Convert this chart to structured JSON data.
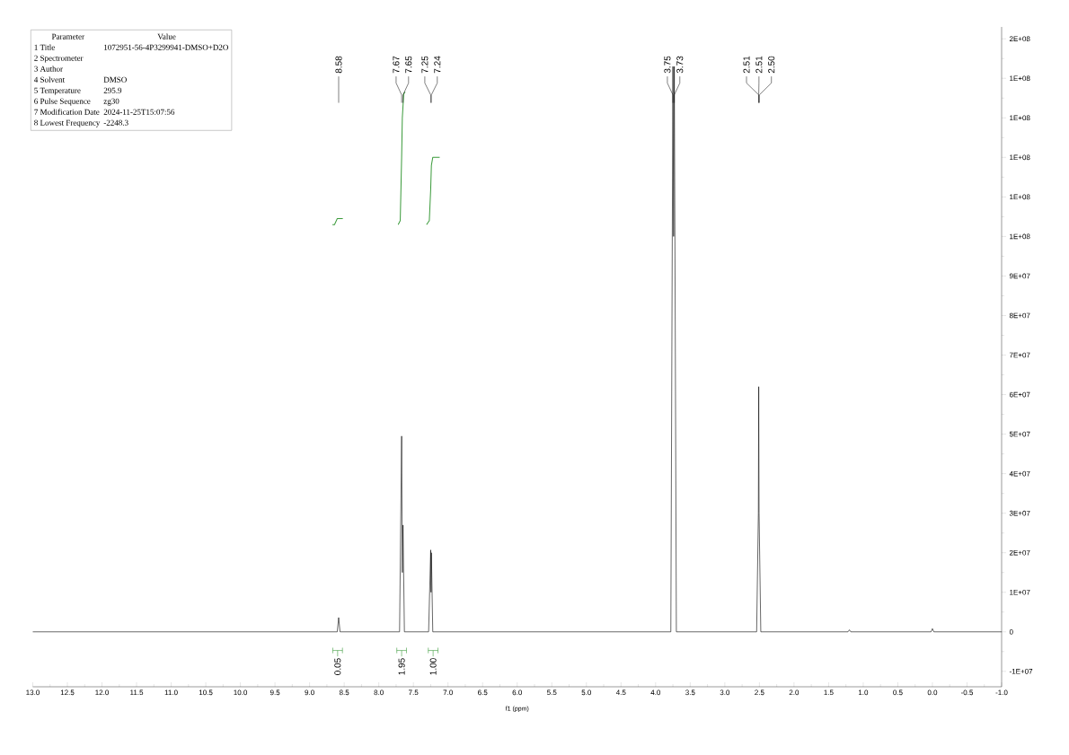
{
  "chart_data": {
    "type": "line",
    "xlabel": "f1 (ppm)",
    "xlim": [
      13.0,
      -1.0
    ],
    "xticks": [
      {
        "value": 13,
        "label": "13.0"
      },
      {
        "value": 12.5,
        "label": "12.5"
      },
      {
        "value": 12,
        "label": "12.0"
      },
      {
        "value": 11.5,
        "label": "11.5"
      },
      {
        "value": 11,
        "label": "11.0"
      },
      {
        "value": 10.5,
        "label": "10.5"
      },
      {
        "value": 10,
        "label": "10.0"
      },
      {
        "value": 9.5,
        "label": "9.5"
      },
      {
        "value": 9,
        "label": "9.0"
      },
      {
        "value": 8.5,
        "label": "8.5"
      },
      {
        "value": 8,
        "label": "8.0"
      },
      {
        "value": 7.5,
        "label": "7.5"
      },
      {
        "value": 7,
        "label": "7.0"
      },
      {
        "value": 6.5,
        "label": "6.5"
      },
      {
        "value": 6,
        "label": "6.0"
      },
      {
        "value": 5.5,
        "label": "5.5"
      },
      {
        "value": 5,
        "label": "5.0"
      },
      {
        "value": 4.5,
        "label": "4.5"
      },
      {
        "value": 4,
        "label": "4.0"
      },
      {
        "value": 3.5,
        "label": "3.5"
      },
      {
        "value": 3,
        "label": "3.0"
      },
      {
        "value": 2.5,
        "label": "2.5"
      },
      {
        "value": 2,
        "label": "2.0"
      },
      {
        "value": 1.5,
        "label": "1.5"
      },
      {
        "value": 1,
        "label": "1.0"
      },
      {
        "value": 0.5,
        "label": "0.5"
      },
      {
        "value": 0,
        "label": "0.0"
      },
      {
        "value": -0.5,
        "label": "-0.5"
      },
      {
        "value": -1,
        "label": "-1.0"
      }
    ],
    "ylim": [
      -13900000,
      153000000
    ],
    "yticks": [
      {
        "value": -10000000,
        "label": "-1E+07"
      },
      0,
      {
        "value": 10000000,
        "label": "1E+07"
      },
      {
        "value": 20000000,
        "label": "2E+07"
      },
      {
        "value": 30000000,
        "label": "3E+07"
      },
      {
        "value": 40000000,
        "label": "4E+07"
      },
      {
        "value": 50000000,
        "label": "5E+07"
      },
      {
        "value": 60000000,
        "label": "6E+07"
      },
      {
        "value": 70000000,
        "label": "7E+07"
      },
      {
        "value": 80000000,
        "label": "8E+07"
      },
      {
        "value": 90000000,
        "label": "9E+07"
      },
      {
        "value": 100000000,
        "label": "1E+08"
      },
      {
        "value": 110000000,
        "label": "1E+08"
      },
      {
        "value": 120000000,
        "label": "1E+08"
      },
      {
        "value": 130000000,
        "label": "1E+08"
      },
      {
        "value": 140000000,
        "label": "1E+08"
      },
      {
        "value": 150000000,
        "label": "2E+08"
      }
    ],
    "series": [
      {
        "color": "#000000",
        "x": [
          13.0,
          8.6,
          8.58,
          8.56,
          7.7,
          7.67,
          7.66,
          7.65,
          7.63,
          7.28,
          7.25,
          7.245,
          7.24,
          7.22,
          3.78,
          3.75,
          3.74,
          3.73,
          3.7,
          2.54,
          2.515,
          2.51,
          2.505,
          2.48,
          1.22,
          1.2,
          1.18,
          0.02,
          0.0,
          -0.02,
          -1.0
        ],
        "values": [
          0,
          0,
          3600000,
          0,
          0,
          49500000,
          15000000,
          27000000,
          0,
          0,
          20700000,
          10000000,
          20000000,
          0,
          0,
          143000000,
          100000000,
          143000000,
          0,
          0,
          30000000,
          62000000,
          30000000,
          0,
          0,
          500000,
          0,
          0,
          800000,
          0,
          0
        ]
      },
      {
        "color": "#3a9a3a",
        "x": [
          8.67,
          8.64,
          8.6,
          8.58,
          8.52
        ],
        "values": [
          103000000,
          103000000,
          104500000,
          104500000,
          104500000
        ]
      },
      {
        "color": "#3a9a3a",
        "x": [
          7.72,
          7.69,
          7.67,
          7.66,
          7.64,
          7.62
        ],
        "values": [
          103000000,
          104000000,
          120000000,
          130000000,
          136000000,
          136600000
        ]
      },
      {
        "color": "#3a9a3a",
        "x": [
          7.31,
          7.27,
          7.25,
          7.24,
          7.22,
          7.12
        ],
        "values": [
          103000000,
          104000000,
          112000000,
          118000000,
          120000000,
          120000000
        ]
      }
    ],
    "annotations": [
      "Parameter",
      "Value",
      "1 Title",
      "1072951-56-4P3299941-DMSO+D2O",
      "2 Spectrometer",
      "3 Author",
      "4 Solvent",
      "DMSO",
      "5 Temperature",
      "295.9",
      "6 Pulse Sequence",
      "zg30",
      "7 Modification Date",
      "2024-11-25T15:07:56",
      "8 Lowest Frequency",
      "-2248.3",
      {
        "text": "8.58",
        "x": 8.58
      },
      {
        "text": "7.67",
        "x": 7.67
      },
      {
        "text": "7.65",
        "x": 7.65
      },
      {
        "text": "7.25",
        "x": 7.25
      },
      {
        "text": "7.24",
        "x": 7.24
      },
      {
        "text": "3.75",
        "x": 3.75
      },
      {
        "text": "3.73",
        "x": 3.73
      },
      {
        "text": "2.51",
        "x": 2.51
      },
      {
        "text": "2.51",
        "x": 2.51
      },
      {
        "text": "2.50",
        "x": 2.5
      },
      "0.05",
      "1.95",
      "1.00"
    ]
  }
}
